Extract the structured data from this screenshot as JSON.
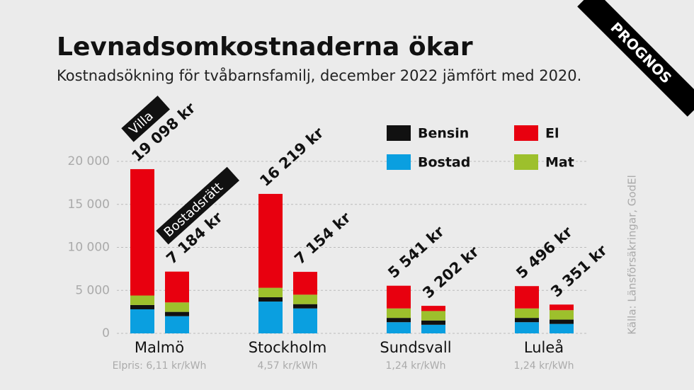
{
  "corner_label": "PROGNOS",
  "source": "Källa: Länsförsäkringar, GodEl",
  "chart_data": {
    "type": "stacked-grouped-bar",
    "title": "Levnadsomkostnaderna ökar",
    "subtitle": "Kostnadsökning för tvåbarnsfamilj, december 2022 jämfört med 2020.",
    "groups": [
      "Malmö",
      "Stockholm",
      "Sundsvall",
      "Luleå"
    ],
    "group_notes": [
      "Elpris: 6,11 kr/kWh",
      "4,57 kr/kWh",
      "1,24 kr/kWh",
      "1,24 kr/kWh"
    ],
    "annotations": [
      "Villa",
      "Bostadsrätt"
    ],
    "series": [
      {
        "name": "Bostad",
        "color": "#0a9fe0",
        "values": [
          2800,
          2000,
          3700,
          2900,
          1300,
          1000,
          1300,
          1100
        ]
      },
      {
        "name": "Bensin",
        "color": "#111111",
        "values": [
          500,
          500,
          500,
          500,
          500,
          500,
          500,
          500
        ]
      },
      {
        "name": "Mat",
        "color": "#9dc02c",
        "values": [
          1100,
          1100,
          1100,
          1100,
          1100,
          1100,
          1100,
          1100
        ]
      },
      {
        "name": "El",
        "color": "#e8000f",
        "values": [
          14698,
          3584,
          10919,
          2654,
          2641,
          602,
          2596,
          651
        ]
      }
    ],
    "totals": {
      "values": [
        19098,
        7184,
        16219,
        7154,
        5541,
        3202,
        5496,
        3351
      ],
      "value_labels": [
        "19 098 kr",
        "7 184 kr",
        "16 219 kr",
        "7 154 kr",
        "5 541 kr",
        "3 202 kr",
        "5 496 kr",
        "3 351 kr"
      ]
    },
    "ylim": [
      0,
      20000
    ],
    "yticks": [
      0,
      {
        "value": 5000,
        "label": "5 000"
      },
      {
        "value": 10000,
        "label": "10 000"
      },
      {
        "value": 15000,
        "label": "15 000"
      },
      {
        "value": 20000,
        "label": "20 000"
      }
    ],
    "grid": true
  }
}
